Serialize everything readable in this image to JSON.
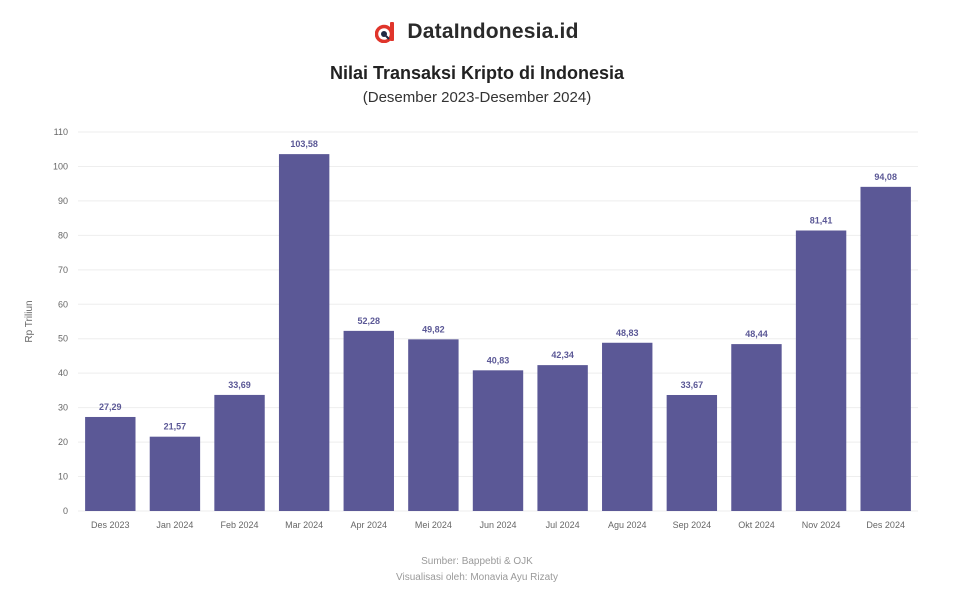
{
  "brand": {
    "name": "DataIndonesia.id",
    "logo_icon": "dataindonesia-logo-icon"
  },
  "colors": {
    "bar": "#5b5896",
    "brand_red": "#e0352b",
    "grid": "#eeeeee",
    "axis_text": "#666666"
  },
  "chart_data": {
    "type": "bar",
    "title": "Nilai Transaksi Kripto di Indonesia",
    "subtitle": "(Desember 2023-Desember 2024)",
    "xlabel": "",
    "ylabel": "Rp Triliun",
    "ylim": [
      0,
      110
    ],
    "yticks": [
      0,
      10,
      20,
      30,
      40,
      50,
      60,
      70,
      80,
      90,
      100,
      110
    ],
    "grid": true,
    "categories": [
      "Des 2023",
      "Jan 2024",
      "Feb 2024",
      "Mar 2024",
      "Apr 2024",
      "Mei 2024",
      "Jun 2024",
      "Jul 2024",
      "Agu 2024",
      "Sep 2024",
      "Okt 2024",
      "Nov 2024",
      "Des 2024"
    ],
    "values": [
      27.29,
      21.57,
      33.69,
      103.58,
      52.28,
      49.82,
      40.83,
      42.34,
      48.83,
      33.67,
      48.44,
      81.41,
      94.08
    ],
    "value_labels": [
      "27,29",
      "21,57",
      "33,69",
      "103,58",
      "52,28",
      "49,82",
      "40,83",
      "42,34",
      "48,83",
      "33,67",
      "48,44",
      "81,41",
      "94,08"
    ]
  },
  "footer": {
    "source": "Sumber: Bappebti & OJK",
    "credit": "Visualisasi oleh: Monavia Ayu Rizaty"
  }
}
